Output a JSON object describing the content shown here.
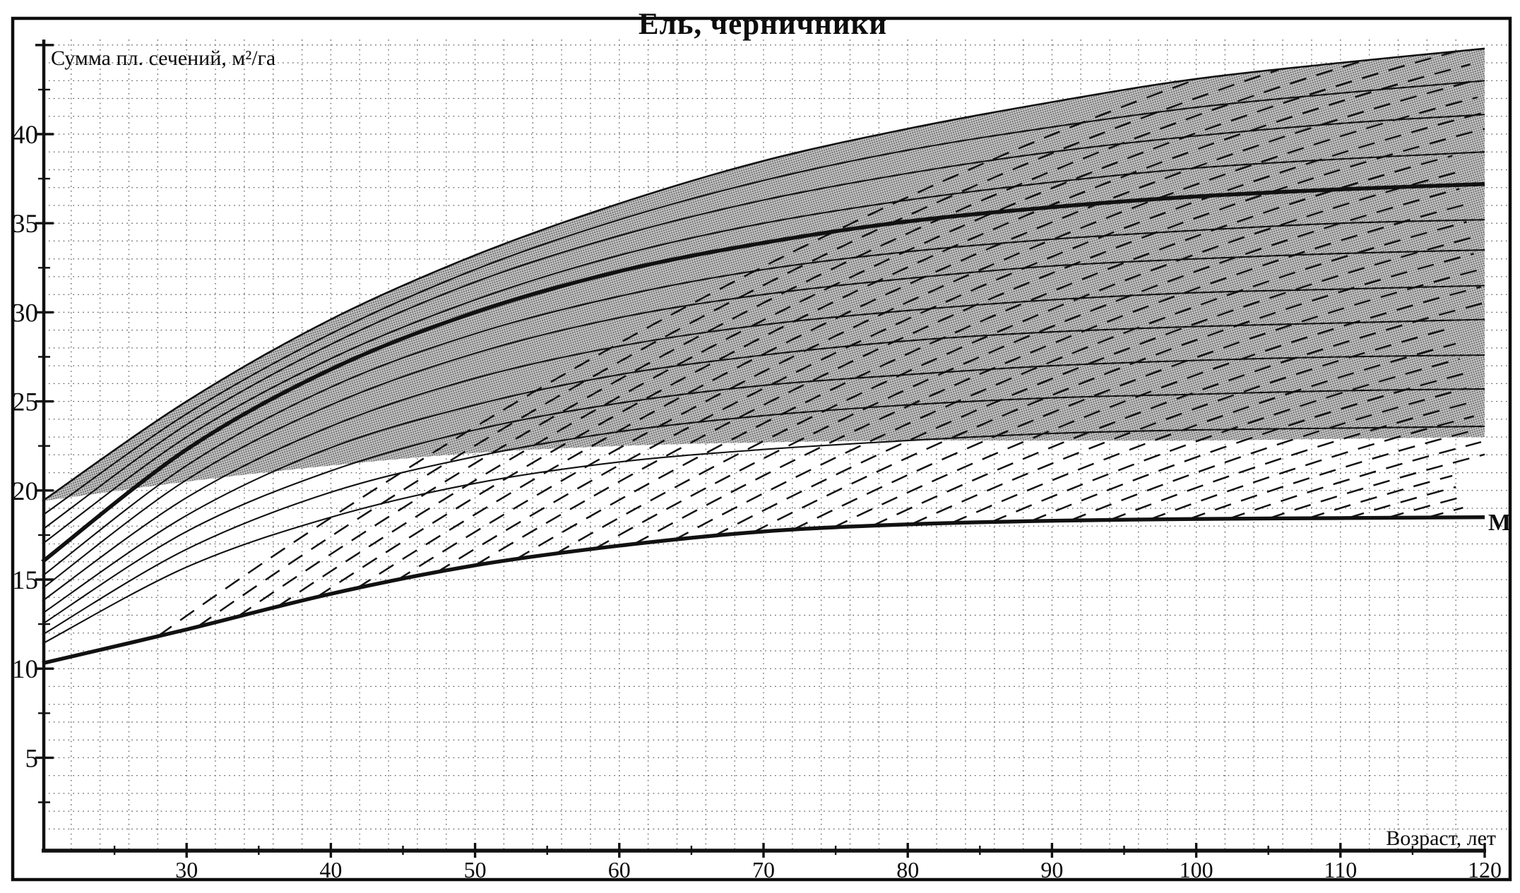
{
  "ui": {
    "title": "Ель, черничники",
    "y_axis_label": "Сумма пл. сечений, м²/га",
    "x_axis_label": "Возраст, лет",
    "m_label": "М"
  },
  "colors": {
    "line": "#111111",
    "grid_dot": "#2b2b2b",
    "band_base": "#c7c7c7",
    "halftone_dot": "#000000",
    "background": "#ffffff"
  },
  "chart_data": {
    "type": "line",
    "title": "Ель, черничники",
    "xlabel": "Возраст, лет",
    "ylabel": "Сумма пл. сечений, м²/га",
    "xlim": [
      20,
      120
    ],
    "ylim": [
      0,
      45.5
    ],
    "x_ticks": [
      30,
      40,
      50,
      60,
      70,
      80,
      90,
      100,
      110,
      120
    ],
    "x_minor_tick_step": 5,
    "y_ticks": [
      5,
      10,
      15,
      20,
      25,
      30,
      35,
      40
    ],
    "y_minor_tick_step": 2.5,
    "grid": {
      "style": "dotted",
      "x_step_years": 2,
      "y_step_units": 1
    },
    "ages": [
      20,
      30,
      40,
      50,
      60,
      70,
      80,
      90,
      100,
      110,
      120
    ],
    "series": [
      {
        "name": "g-curve-1-top",
        "style": "thin",
        "values": [
          19.4,
          25.0,
          29.6,
          33.2,
          36.1,
          38.5,
          40.3,
          41.8,
          43.1,
          44.0,
          44.8
        ]
      },
      {
        "name": "g-curve-2",
        "style": "thin",
        "values": [
          18.6,
          24.3,
          28.8,
          32.4,
          35.2,
          37.4,
          39.1,
          40.4,
          41.5,
          42.3,
          43.0
        ]
      },
      {
        "name": "g-curve-3",
        "style": "thin",
        "values": [
          17.8,
          23.7,
          28.2,
          31.7,
          34.3,
          36.3,
          37.8,
          39.0,
          39.9,
          40.6,
          41.1
        ]
      },
      {
        "name": "g-curve-4",
        "style": "thin",
        "values": [
          17.0,
          23.0,
          27.4,
          30.7,
          33.2,
          35.0,
          36.3,
          37.3,
          38.1,
          38.6,
          39.0
        ]
      },
      {
        "name": "g-curve-5-normal",
        "style": "thick",
        "values": [
          16.0,
          22.3,
          26.8,
          30.0,
          32.3,
          33.9,
          35.1,
          35.9,
          36.5,
          36.9,
          37.2
        ]
      },
      {
        "name": "g-curve-6",
        "style": "thin",
        "values": [
          15.2,
          21.4,
          25.8,
          28.8,
          30.9,
          32.4,
          33.4,
          34.1,
          34.6,
          35.0,
          35.2
        ]
      },
      {
        "name": "g-curve-7",
        "style": "thin",
        "values": [
          14.5,
          20.6,
          24.8,
          27.7,
          29.7,
          31.0,
          31.9,
          32.6,
          33.0,
          33.3,
          33.5
        ]
      },
      {
        "name": "g-curve-8",
        "style": "thin",
        "values": [
          13.8,
          19.6,
          23.6,
          26.3,
          28.1,
          29.3,
          30.1,
          30.7,
          31.1,
          31.3,
          31.5
        ]
      },
      {
        "name": "g-curve-9",
        "style": "thin",
        "values": [
          13.1,
          18.6,
          22.4,
          24.8,
          26.5,
          27.6,
          28.4,
          28.9,
          29.2,
          29.4,
          29.6
        ]
      },
      {
        "name": "g-curve-10",
        "style": "thin",
        "values": [
          12.5,
          17.7,
          21.1,
          23.4,
          24.9,
          25.9,
          26.5,
          27.0,
          27.3,
          27.5,
          27.6
        ]
      },
      {
        "name": "g-curve-11",
        "style": "thin",
        "values": [
          11.9,
          16.7,
          19.9,
          21.9,
          23.3,
          24.2,
          24.8,
          25.2,
          25.4,
          25.6,
          25.7
        ]
      },
      {
        "name": "g-curve-12",
        "style": "thin",
        "values": [
          11.4,
          15.7,
          18.5,
          20.4,
          21.6,
          22.3,
          22.8,
          23.2,
          23.4,
          23.5,
          23.6
        ]
      }
    ],
    "normal_curve_index": 4,
    "min_curve": {
      "name": "M-minimum-curve",
      "label": "М",
      "values": [
        10.3,
        12.2,
        14.2,
        15.8,
        16.9,
        17.7,
        18.1,
        18.3,
        18.4,
        18.45,
        18.5
      ]
    },
    "band": {
      "top_series_index": 0,
      "bottom_values": [
        19.4,
        20.5,
        21.4,
        22.1,
        22.5,
        22.7,
        22.8,
        22.8,
        22.8,
        22.9,
        23.0
      ]
    },
    "dashed_family": {
      "count": 33,
      "start_age_first": 28,
      "start_age_step": 2.75,
      "slope_linear": 0.69,
      "slope_quad": 0.002
    }
  }
}
